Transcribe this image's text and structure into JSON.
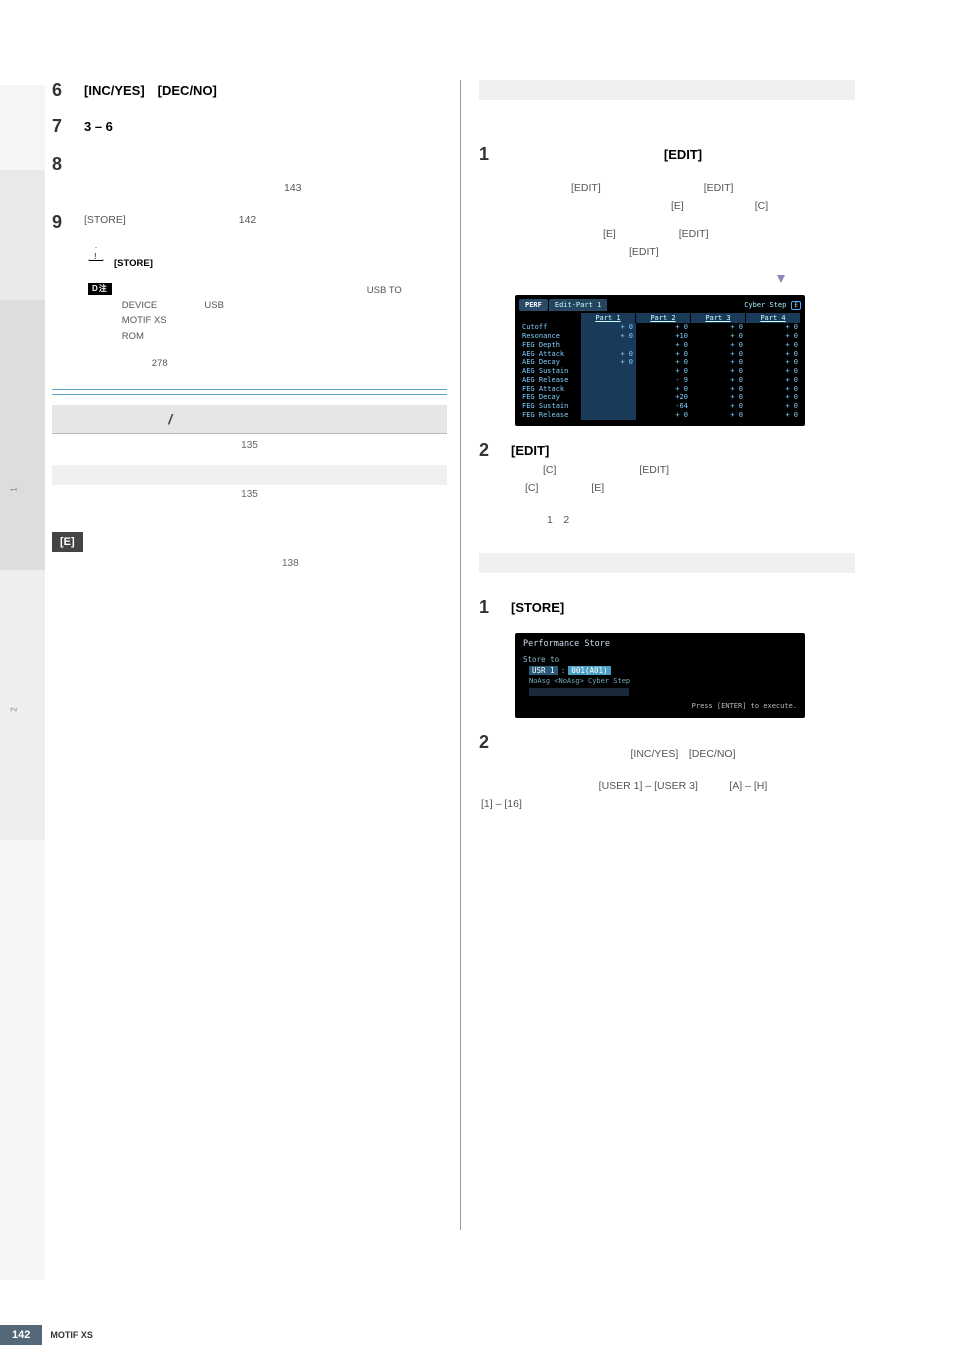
{
  "sidebar": {
    "nav1": "1",
    "nav2": "2"
  },
  "left": {
    "s6": {
      "num": "6",
      "title": "[INC/YES]　[DEC/NO]"
    },
    "s7": {
      "num": "7",
      "title": "3 – 6"
    },
    "s8": {
      "num": "8",
      "body_a": "143"
    },
    "s9": {
      "num": "9",
      "body_a": "[STORE]",
      "body_b": "142"
    },
    "warn": {
      "text_a": "[STORE]"
    },
    "note": {
      "badge": "D注",
      "line1a": "USB TO",
      "line1b": "DEVICE",
      "line1c": "USB",
      "line1d": "MOTIF XS",
      "line1e": "ROM",
      "line2": "278"
    },
    "section_title": "/",
    "section_sub": "135",
    "subbar_sub": "135",
    "eind": "[E]",
    "eind_sub": "138"
  },
  "right": {
    "top": {
      "s1": {
        "num": "1",
        "title": "[EDIT]",
        "body_b1": "[EDIT]",
        "body_b2": "[EDIT]",
        "body_b3": "[E]",
        "body_b4": "[C]",
        "body_c1": "[E]",
        "body_c2": "[EDIT]",
        "body_c3": "[EDIT]"
      },
      "lcd": {
        "perf": "PERF",
        "tab": "Edit-Part 1",
        "right_label": "Cyber Step",
        "e_icon": "E",
        "headers": [
          "",
          "Part 1",
          "Part 2",
          "Part 3",
          "Part 4"
        ],
        "labels": [
          "Cutoff",
          "Resonance",
          "FEG Depth",
          "AEG Attack",
          "AEG Decay",
          "AEG Sustain",
          "AEG Release",
          "FEG Attack",
          "FEG Decay",
          "FEG Sustain",
          "FEG Release"
        ],
        "grid": [
          [
            "+ 0",
            "+ 0",
            "+ 0",
            "+ 0"
          ],
          [
            "+ 0",
            "+10",
            "+ 0",
            "+ 0"
          ],
          [
            "",
            "+ 0",
            "+ 0",
            "+ 0"
          ],
          [
            "+ 0",
            "+ 0",
            "+ 0",
            "+ 0"
          ],
          [
            "+ 0",
            "+ 0",
            "+ 0",
            "+ 0"
          ],
          [
            "",
            "+ 0",
            "+ 0",
            "+ 0"
          ],
          [
            "",
            "- 9",
            "+ 0",
            "+ 0"
          ],
          [
            "",
            "+ 0",
            "+ 0",
            "+ 0"
          ],
          [
            "",
            "+20",
            "+ 0",
            "+ 0"
          ],
          [
            "",
            "-64",
            "+ 0",
            "+ 0"
          ],
          [
            "",
            "+ 0",
            "+ 0",
            "+ 0"
          ]
        ]
      },
      "s2": {
        "num": "2",
        "title": "[EDIT]",
        "body_a1": "[C]",
        "body_a2": "[EDIT]",
        "body_b1": "[C]",
        "body_b2": "[E]",
        "body_c": "1　2"
      }
    },
    "bottom": {
      "s1": {
        "num": "1",
        "title": "[STORE]"
      },
      "lcd2": {
        "title": "Performance Store",
        "sub": "Store to",
        "box1": "USR 1",
        "box2": "001(A01)",
        "line": "NoAsg <NoAsg>  Cyber Step",
        "footer": "Press [ENTER] to execute."
      },
      "s2": {
        "num": "2",
        "body_a": "[INC/YES]　[DEC/NO]",
        "body_b": "[USER 1] – [USER 3]　　　[A] – [H]",
        "body_c": "[1] – [16]"
      }
    }
  },
  "footer": {
    "page": "142",
    "label": "MOTIF XS"
  }
}
